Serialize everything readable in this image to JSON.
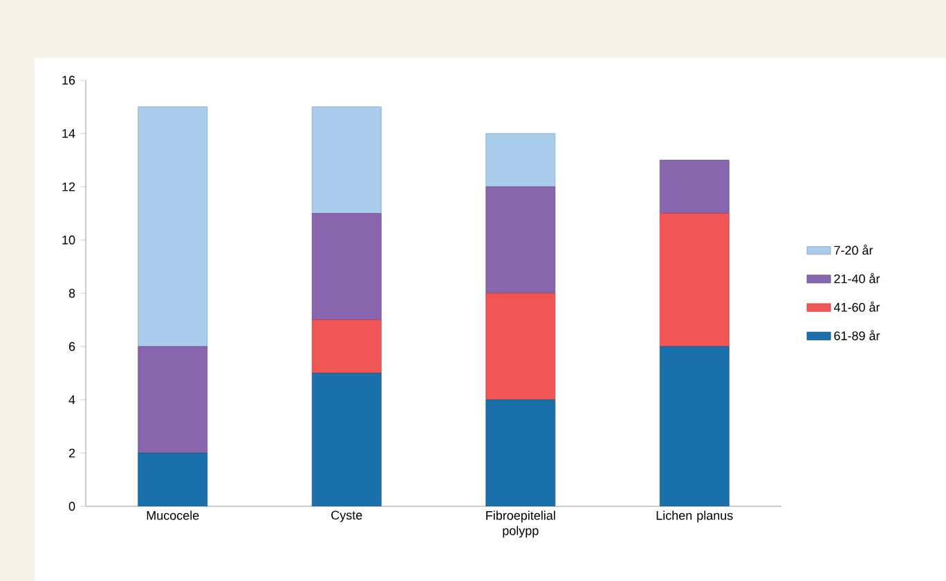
{
  "chart_data": {
    "type": "bar",
    "stacked": true,
    "categories": [
      "Mucocele",
      "Cyste",
      "Fibroepitelial polypp",
      "Lichen planus"
    ],
    "series": [
      {
        "name": "61-89 år",
        "color": "#1a70aa",
        "values": [
          2,
          5,
          4,
          6
        ]
      },
      {
        "name": "41-60 år",
        "color": "#ef5655",
        "values": [
          0,
          2,
          4,
          5
        ]
      },
      {
        "name": "21-40 år",
        "color": "#8865ad",
        "values": [
          4,
          4,
          4,
          2
        ]
      },
      {
        "name": "7-20 år",
        "color": "#aacdeb",
        "values": [
          9,
          4,
          2,
          0
        ]
      }
    ],
    "ylim": [
      0,
      16
    ],
    "yticks": [
      0,
      2,
      4,
      6,
      8,
      10,
      12,
      14,
      16
    ],
    "grid": false,
    "legend": "right"
  }
}
